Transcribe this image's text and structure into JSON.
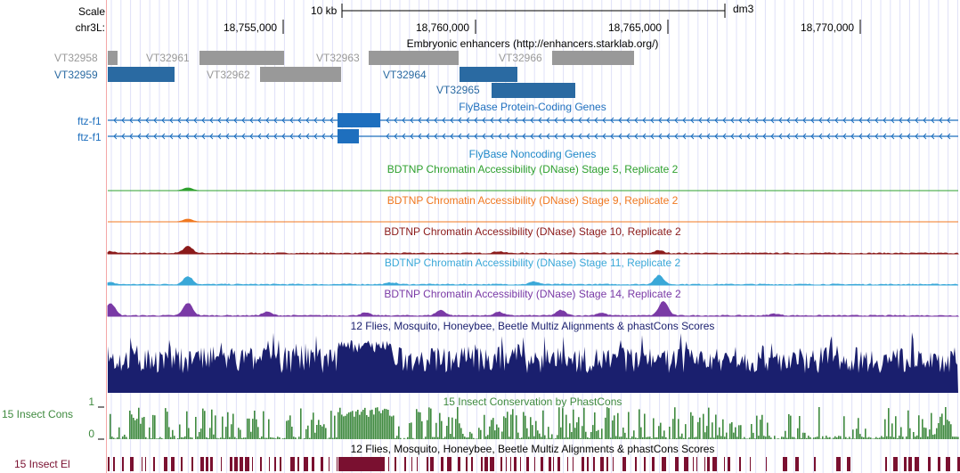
{
  "header": {
    "scale_label": "Scale",
    "chrom_label": "chr3L:",
    "scalebar_label": "10 kb",
    "assembly": "dm3",
    "ticks": [
      "18,755,000",
      "18,760,000",
      "18,765,000",
      "18,770,000"
    ]
  },
  "tracks": {
    "enhancers": {
      "title": "Embryonic enhancers (http://enhancers.starklab.org/)",
      "items": [
        {
          "name": "VT32958",
          "color": "#999999"
        },
        {
          "name": "VT32959",
          "color": "#2a6aa2"
        },
        {
          "name": "VT32961",
          "color": "#999999"
        },
        {
          "name": "VT32962",
          "color": "#999999"
        },
        {
          "name": "VT32963",
          "color": "#999999"
        },
        {
          "name": "VT32964",
          "color": "#2a6aa2"
        },
        {
          "name": "VT32965",
          "color": "#2a6aa2"
        },
        {
          "name": "VT32966",
          "color": "#999999"
        }
      ]
    },
    "protein_coding": {
      "title": "FlyBase Protein-Coding Genes",
      "gene1": "ftz-f1",
      "gene2": "ftz-f1",
      "color": "#1e6fbe"
    },
    "noncoding": {
      "title": "FlyBase Noncoding Genes",
      "color": "#1e88c8"
    },
    "dnase": [
      {
        "title": "BDTNP Chromatin Accessibility (DNase) Stage 5, Replicate 2",
        "color": "#2ea02e"
      },
      {
        "title": "BDTNP Chromatin Accessibility (DNase) Stage 9, Replicate 2",
        "color": "#f07820"
      },
      {
        "title": "BDTNP Chromatin Accessibility (DNase) Stage 10, Replicate 2",
        "color": "#8b1a1a"
      },
      {
        "title": "BDTNP Chromatin Accessibility (DNase) Stage 11, Replicate 2",
        "color": "#3aa8d8"
      },
      {
        "title": "BDTNP Chromatin Accessibility (DNase) Stage 14, Replicate 2",
        "color": "#7a3aa6"
      }
    ],
    "multiz": {
      "title": "12 Flies, Mosquito, Honeybee, Beetle Multiz Alignments & phastCons Scores",
      "color": "#1a1f6e"
    },
    "phastcons": {
      "title": "15 Insect Conservation by PhastCons",
      "side_label": "15 Insect Cons",
      "ymax": "1",
      "ymin": "0",
      "color": "#3f8a3f"
    },
    "elements": {
      "title": "12 Flies, Mosquito, Honeybee, Beetle Multiz Alignments & phastCons Scores",
      "side_label": "15 Insect El",
      "color": "#7a1030"
    }
  }
}
